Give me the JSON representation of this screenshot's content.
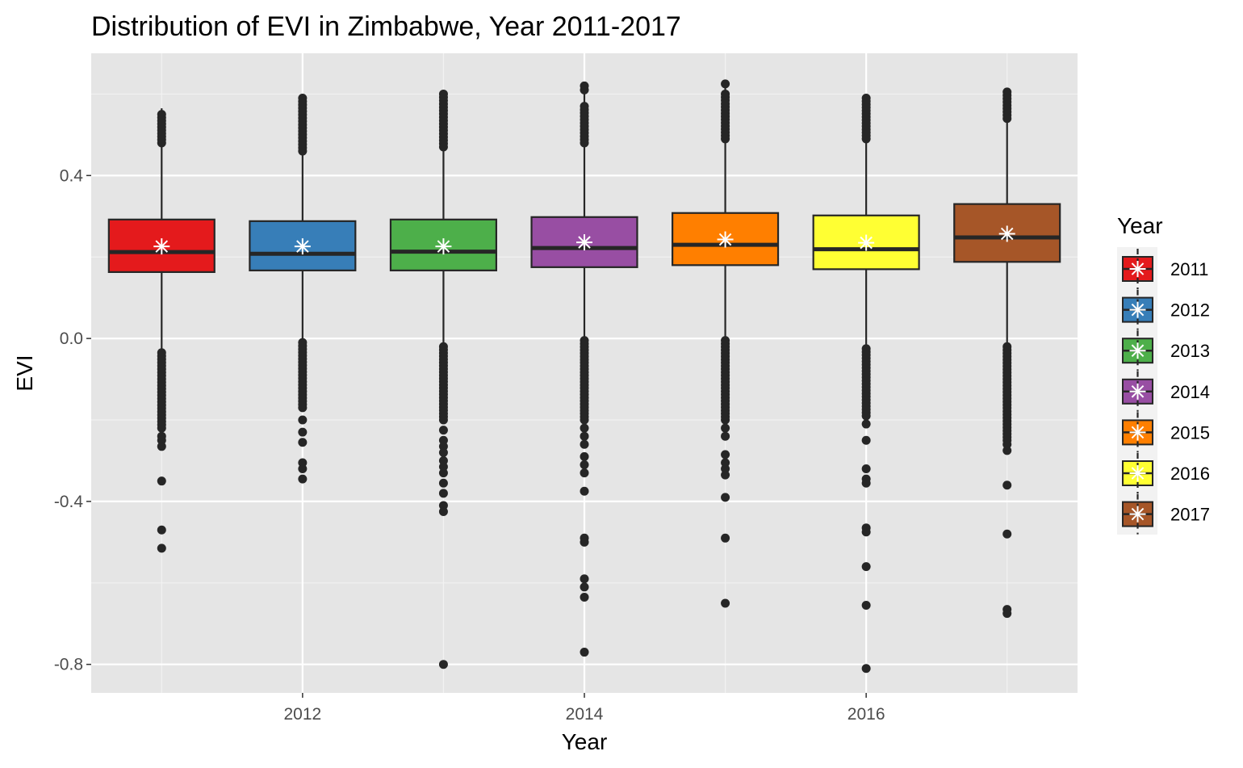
{
  "chart_data": {
    "type": "box",
    "title": "Distribution of EVI in Zimbabwe, Year 2011-2017",
    "xlabel": "Year",
    "ylabel": "EVI",
    "xlim": [
      2010.5,
      2017.5
    ],
    "ylim": [
      -0.87,
      0.7
    ],
    "x_ticks": [
      2012,
      2014,
      2016
    ],
    "x_tick_labels": [
      "2012",
      "2014",
      "2016"
    ],
    "y_ticks": [
      -0.8,
      -0.4,
      0.0,
      0.4
    ],
    "y_tick_labels": [
      "-0.8",
      "-0.4",
      "0.0",
      "0.4"
    ],
    "grid": true,
    "legend": {
      "title": "Year",
      "position": "right"
    },
    "mean_marker": "asterisk",
    "series": [
      {
        "name": "2011",
        "x": 2011,
        "color": "#E41A1C",
        "q1": 0.163,
        "median": 0.212,
        "q3": 0.292,
        "mean": 0.226,
        "whisker_low": -0.03,
        "whisker_high": 0.565,
        "outliers_dense_low": [
          -0.035,
          -0.22
        ],
        "outliers_dense_high": [
          0.48,
          0.55
        ],
        "outliers": [
          -0.24,
          -0.25,
          -0.265,
          -0.35,
          -0.47,
          -0.515
        ]
      },
      {
        "name": "2012",
        "x": 2012,
        "color": "#377EB8",
        "q1": 0.167,
        "median": 0.208,
        "q3": 0.288,
        "mean": 0.226,
        "whisker_low": -0.005,
        "whisker_high": 0.598,
        "outliers_dense_low": [
          -0.01,
          -0.17
        ],
        "outliers_dense_high": [
          0.46,
          0.59
        ],
        "outliers": [
          -0.2,
          -0.23,
          -0.255,
          -0.305,
          -0.32,
          -0.345
        ]
      },
      {
        "name": "2013",
        "x": 2013,
        "color": "#4DAF4A",
        "q1": 0.167,
        "median": 0.213,
        "q3": 0.292,
        "mean": 0.226,
        "whisker_low": -0.02,
        "whisker_high": 0.605,
        "outliers_dense_low": [
          -0.02,
          -0.2
        ],
        "outliers_dense_high": [
          0.47,
          0.6
        ],
        "outliers": [
          -0.225,
          -0.25,
          -0.265,
          -0.28,
          -0.3,
          -0.315,
          -0.33,
          -0.355,
          -0.38,
          -0.41,
          -0.425,
          -0.8
        ]
      },
      {
        "name": "2014",
        "x": 2014,
        "color": "#984EA3",
        "q1": 0.175,
        "median": 0.222,
        "q3": 0.298,
        "mean": 0.236,
        "whisker_low": -0.005,
        "whisker_high": 0.615,
        "outliers_dense_low": [
          -0.005,
          -0.2
        ],
        "outliers_dense_high": [
          0.48,
          0.57
        ],
        "outliers": [
          -0.22,
          -0.24,
          -0.26,
          -0.29,
          -0.31,
          -0.33,
          -0.375,
          -0.49,
          -0.5,
          -0.59,
          -0.61,
          -0.635,
          -0.77,
          0.61,
          0.62
        ]
      },
      {
        "name": "2015",
        "x": 2015,
        "color": "#FF7F00",
        "q1": 0.18,
        "median": 0.23,
        "q3": 0.308,
        "mean": 0.243,
        "whisker_low": -0.005,
        "whisker_high": 0.625,
        "outliers_dense_low": [
          -0.005,
          -0.2
        ],
        "outliers_dense_high": [
          0.49,
          0.6
        ],
        "outliers": [
          -0.22,
          -0.24,
          -0.285,
          -0.305,
          -0.32,
          -0.335,
          -0.39,
          -0.49,
          -0.65,
          0.625
        ]
      },
      {
        "name": "2016",
        "x": 2016,
        "color": "#FFFF33",
        "q1": 0.17,
        "median": 0.219,
        "q3": 0.302,
        "mean": 0.235,
        "whisker_low": -0.025,
        "whisker_high": 0.595,
        "outliers_dense_low": [
          -0.025,
          -0.19
        ],
        "outliers_dense_high": [
          0.49,
          0.59
        ],
        "outliers": [
          -0.21,
          -0.25,
          -0.32,
          -0.345,
          -0.355,
          -0.465,
          -0.475,
          -0.56,
          -0.655,
          -0.81
        ]
      },
      {
        "name": "2017",
        "x": 2017,
        "color": "#A65628",
        "q1": 0.188,
        "median": 0.248,
        "q3": 0.33,
        "mean": 0.257,
        "whisker_low": -0.02,
        "whisker_high": 0.608,
        "outliers_dense_low": [
          -0.02,
          -0.25
        ],
        "outliers_dense_high": [
          0.54,
          0.605
        ],
        "outliers": [
          -0.26,
          -0.275,
          -0.36,
          -0.48,
          -0.665,
          -0.675
        ]
      }
    ]
  }
}
